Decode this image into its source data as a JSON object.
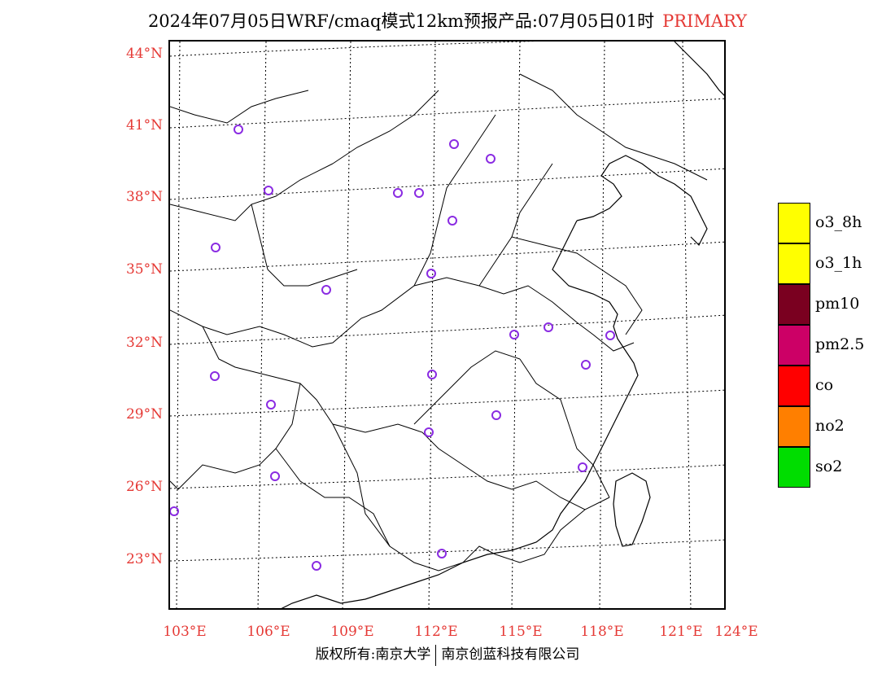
{
  "title": {
    "main": "2024年07月05日WRF/cmaq模式12km预报产品:07月05日01时",
    "tag": "PRIMARY"
  },
  "axes": {
    "lat_labels": [
      "44°N",
      "41°N",
      "38°N",
      "35°N",
      "32°N",
      "29°N",
      "26°N",
      "23°N"
    ],
    "lon_labels": [
      "103°E",
      "106°E",
      "109°E",
      "112°E",
      "115°E",
      "118°E",
      "121°E",
      "124°E"
    ]
  },
  "legend": [
    {
      "label": "o3_8h",
      "color": "#ffff00"
    },
    {
      "label": "o3_1h",
      "color": "#ffff00"
    },
    {
      "label": "pm10",
      "color": "#7a0020"
    },
    {
      "label": "pm2.5",
      "color": "#cc0066"
    },
    {
      "label": "co",
      "color": "#ff0000"
    },
    {
      "label": "no2",
      "color": "#ff7f00"
    },
    {
      "label": "so2",
      "color": "#00dd00"
    }
  ],
  "footer": {
    "left": "版权所有:南京大学",
    "right": "南京创蓝科技有限公司"
  },
  "colors": {
    "pm10": "#7a0020",
    "pm25": "#cc0066",
    "o3": "#ffff00",
    "no2": "#ff7f00",
    "station": "#8a2be2",
    "label": "#e53935"
  }
}
